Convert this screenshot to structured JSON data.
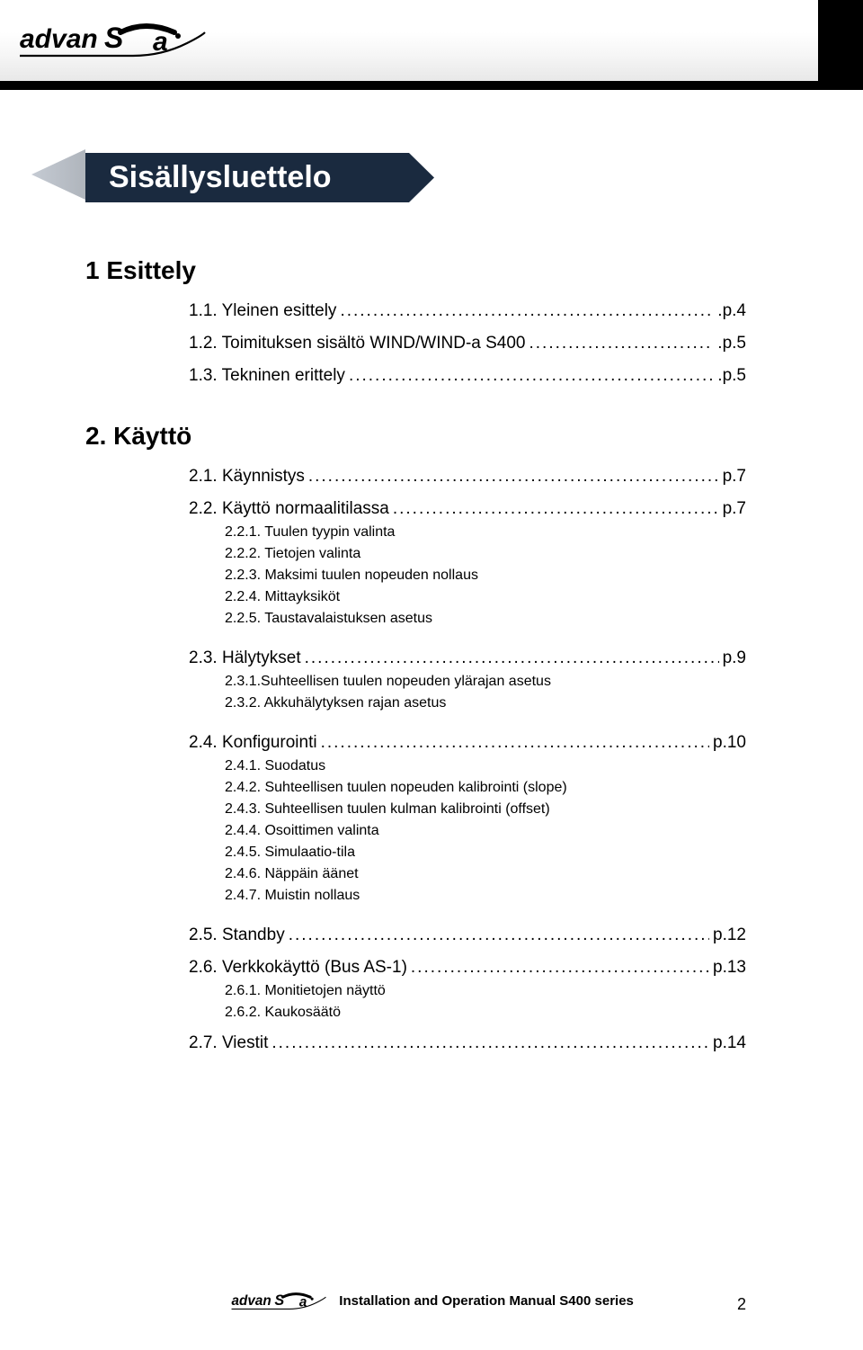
{
  "brand": "advanSea",
  "heading": "Sisällysluettelo",
  "sections": [
    {
      "title": "1 Esittely",
      "items": [
        {
          "label": "1.1. Yleinen esittely",
          "page": ".p.4",
          "lvl": 2
        },
        {
          "label": "1.2. Toimituksen sisältö WIND/WIND-a S400",
          "page": ".p.5",
          "lvl": 2
        },
        {
          "label": "1.3. Tekninen erittely",
          "page": ".p.5",
          "lvl": 2
        }
      ]
    },
    {
      "title": "2. Käyttö",
      "items": [
        {
          "label": "2.1. Käynnistys",
          "page": "p.7",
          "lvl": 2
        },
        {
          "label": "2.2. Käyttö normaalitilassa",
          "page": "p.7",
          "lvl": 2
        },
        {
          "label": "2.2.1. Tuulen tyypin valinta",
          "lvl": 3
        },
        {
          "label": "2.2.2. Tietojen valinta",
          "lvl": 3
        },
        {
          "label": "2.2.3. Maksimi tuulen nopeuden nollaus",
          "lvl": 3
        },
        {
          "label": "2.2.4. Mittayksiköt",
          "lvl": 3
        },
        {
          "label": "2.2.5. Taustavalaistuksen asetus",
          "lvl": 3
        },
        {
          "label": "2.3. Hälytykset",
          "page": "p.9",
          "lvl": 2,
          "gap": true
        },
        {
          "label": "2.3.1.Suhteellisen tuulen nopeuden ylärajan asetus",
          "lvl": 3
        },
        {
          "label": "2.3.2. Akkuhälytyksen rajan asetus",
          "lvl": 3
        },
        {
          "label": "2.4. Konfigurointi",
          "page": "p.10",
          "lvl": 2,
          "gap": true
        },
        {
          "label": "2.4.1. Suodatus",
          "lvl": 3
        },
        {
          "label": "2.4.2. Suhteellisen tuulen nopeuden kalibrointi  (slope)",
          "lvl": 3
        },
        {
          "label": "2.4.3. Suhteellisen tuulen kulman kalibrointi (offset)",
          "lvl": 3
        },
        {
          "label": "2.4.4. Osoittimen valinta",
          "lvl": 3
        },
        {
          "label": "2.4.5. Simulaatio-tila",
          "lvl": 3
        },
        {
          "label": "2.4.6. Näppäin  äänet",
          "lvl": 3
        },
        {
          "label": "2.4.7. Muistin nollaus",
          "lvl": 3
        },
        {
          "label": "2.5. Standby",
          "page": "p.12",
          "lvl": 2,
          "gap": true
        },
        {
          "label": "2.6. Verkkokäyttö (Bus AS-1)",
          "page": "p.13",
          "lvl": 2
        },
        {
          "label": "2.6.1. Monitietojen näyttö",
          "lvl": 3
        },
        {
          "label": "2.6.2. Kaukosäätö",
          "lvl": 3
        },
        {
          "label": "2.7. Viestit",
          "page": "p.14",
          "lvl": 2
        }
      ]
    }
  ],
  "footer_text": "Installation and Operation Manual S400 series",
  "page_number": "2",
  "dots": "......................................................................................................................."
}
